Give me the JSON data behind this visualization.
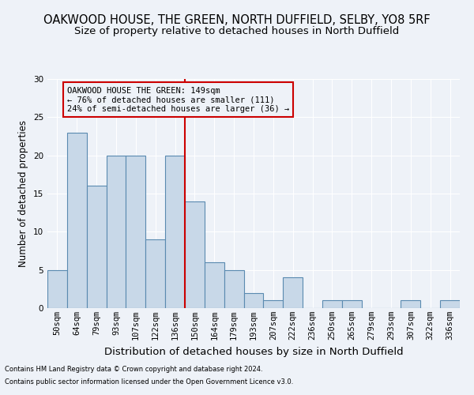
{
  "title": "OAKWOOD HOUSE, THE GREEN, NORTH DUFFIELD, SELBY, YO8 5RF",
  "subtitle": "Size of property relative to detached houses in North Duffield",
  "xlabel": "Distribution of detached houses by size in North Duffield",
  "ylabel": "Number of detached properties",
  "footnote1": "Contains HM Land Registry data © Crown copyright and database right 2024.",
  "footnote2": "Contains public sector information licensed under the Open Government Licence v3.0.",
  "bin_labels": [
    "50sqm",
    "64sqm",
    "79sqm",
    "93sqm",
    "107sqm",
    "122sqm",
    "136sqm",
    "150sqm",
    "164sqm",
    "179sqm",
    "193sqm",
    "207sqm",
    "222sqm",
    "236sqm",
    "250sqm",
    "265sqm",
    "279sqm",
    "293sqm",
    "307sqm",
    "322sqm",
    "336sqm"
  ],
  "bar_values": [
    5,
    23,
    16,
    20,
    20,
    9,
    20,
    14,
    6,
    5,
    2,
    1,
    4,
    0,
    1,
    1,
    0,
    0,
    1,
    0,
    1
  ],
  "bar_color": "#c8d8e8",
  "bar_edge_color": "#5a8ab0",
  "vline_x": 6.5,
  "vline_color": "#cc0000",
  "annotation_line1": "OAKWOOD HOUSE THE GREEN: 149sqm",
  "annotation_line2": "← 76% of detached houses are smaller (111)",
  "annotation_line3": "24% of semi-detached houses are larger (36) →",
  "annotation_box_color": "#cc0000",
  "ylim": [
    0,
    30
  ],
  "yticks": [
    0,
    5,
    10,
    15,
    20,
    25,
    30
  ],
  "background_color": "#eef2f8",
  "grid_color": "#ffffff",
  "title_fontsize": 10.5,
  "subtitle_fontsize": 9.5,
  "xlabel_fontsize": 9.5,
  "ylabel_fontsize": 8.5,
  "tick_fontsize": 7.5,
  "annot_fontsize": 7.5,
  "footnote_fontsize": 6.0
}
